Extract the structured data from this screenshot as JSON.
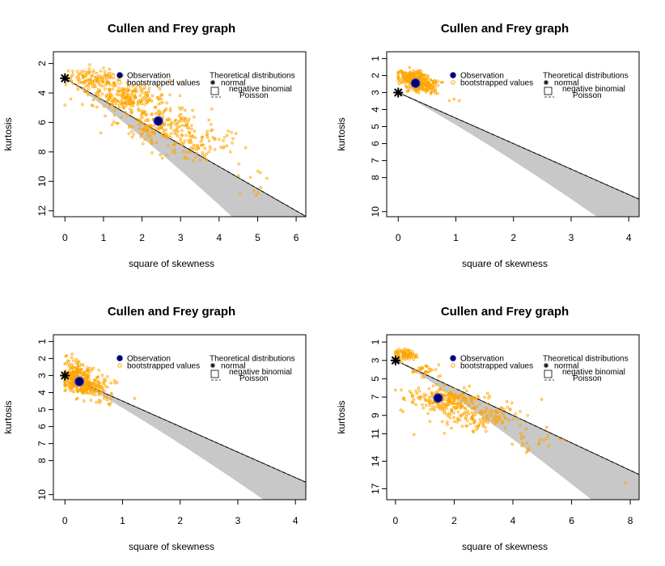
{
  "chart_data": [
    {
      "type": "scatter",
      "title": "Cullen and Frey graph",
      "xlabel": "square of skewness",
      "ylabel": "kurtosis",
      "xlim": [
        -0.3,
        6.25
      ],
      "ylim": [
        12.4,
        1.2
      ],
      "xticks": [
        0,
        1,
        2,
        3,
        4,
        5,
        6
      ],
      "yticks": [
        2,
        4,
        6,
        8,
        10,
        12
      ],
      "observation": {
        "x": 2.42,
        "y": 5.9
      },
      "normal": {
        "x": 0,
        "y": 3
      },
      "bootstrap_cloud": [
        {
          "x": 0.75,
          "y": 3.0,
          "sx": 0.35,
          "sy": 0.35,
          "n": 120
        },
        {
          "x": 1.6,
          "y": 4.3,
          "sx": 0.5,
          "sy": 0.45,
          "n": 220
        },
        {
          "x": 2.5,
          "y": 6.1,
          "sx": 0.55,
          "sy": 0.6,
          "n": 200
        },
        {
          "x": 3.4,
          "y": 7.4,
          "sx": 0.55,
          "sy": 0.7,
          "n": 90
        },
        {
          "x": 5.1,
          "y": 10.2,
          "sx": 0.35,
          "sy": 0.6,
          "n": 10
        }
      ],
      "legend": {
        "observation": "Observation",
        "bootstrapped": "bootstrapped values",
        "theoretical_header": "Theoretical distributions",
        "normal": "normal",
        "negative_binomial": "negative binomial",
        "poisson": "Poisson"
      }
    },
    {
      "type": "scatter",
      "title": "Cullen and Frey graph",
      "xlabel": "square of skewness",
      "ylabel": "kurtosis",
      "xlim": [
        -0.2,
        4.18
      ],
      "ylim": [
        10.3,
        0.6
      ],
      "xticks": [
        0,
        1,
        2,
        3,
        4
      ],
      "yticks": [
        1,
        2,
        3,
        4,
        5,
        6,
        7,
        8,
        10
      ],
      "observation": {
        "x": 0.3,
        "y": 2.45
      },
      "normal": {
        "x": 0,
        "y": 3
      },
      "bootstrap_cloud": [
        {
          "x": 0.22,
          "y": 2.1,
          "sx": 0.12,
          "sy": 0.2,
          "n": 180
        },
        {
          "x": 0.45,
          "y": 2.6,
          "sx": 0.14,
          "sy": 0.22,
          "n": 140
        },
        {
          "x": 0.95,
          "y": 3.3,
          "sx": 0.12,
          "sy": 0.2,
          "n": 3
        }
      ],
      "legend": {
        "observation": "Observation",
        "bootstrapped": "bootstrapped values",
        "theoretical_header": "Theoretical distributions",
        "normal": "normal",
        "negative_binomial": "negative binomial",
        "poisson": "Poisson"
      }
    },
    {
      "type": "scatter",
      "title": "Cullen and Frey graph",
      "xlabel": "square of skewness",
      "ylabel": "kurtosis",
      "xlim": [
        -0.2,
        4.18
      ],
      "ylim": [
        10.3,
        0.6
      ],
      "xticks": [
        0,
        1,
        2,
        3,
        4
      ],
      "yticks": [
        1,
        2,
        3,
        4,
        5,
        6,
        7,
        8,
        10
      ],
      "observation": {
        "x": 0.25,
        "y": 3.35
      },
      "normal": {
        "x": 0,
        "y": 3
      },
      "bootstrap_cloud": [
        {
          "x": 0.18,
          "y": 3.0,
          "sx": 0.12,
          "sy": 0.4,
          "n": 200
        },
        {
          "x": 0.4,
          "y": 3.55,
          "sx": 0.17,
          "sy": 0.35,
          "n": 180
        },
        {
          "x": 0.8,
          "y": 4.4,
          "sx": 0.18,
          "sy": 0.3,
          "n": 12
        }
      ],
      "legend": {
        "observation": "Observation",
        "bootstrapped": "bootstrapped values",
        "theoretical_header": "Theoretical distributions",
        "normal": "normal",
        "negative_binomial": "negative binomial",
        "poisson": "Poisson"
      }
    },
    {
      "type": "scatter",
      "title": "Cullen and Frey graph",
      "xlabel": "square of skewness",
      "ylabel": "kurtosis",
      "xlim": [
        -0.3,
        8.3
      ],
      "ylim": [
        18.2,
        0.2
      ],
      "xticks": [
        0,
        2,
        4,
        6,
        8
      ],
      "yticks": [
        1,
        3,
        5,
        7,
        9,
        11,
        14,
        17
      ],
      "observation": {
        "x": 1.45,
        "y": 7.1
      },
      "normal": {
        "x": 0,
        "y": 3
      },
      "bootstrap_cloud": [
        {
          "x": 0.3,
          "y": 2.4,
          "sx": 0.2,
          "sy": 0.3,
          "n": 80
        },
        {
          "x": 1.0,
          "y": 4.2,
          "sx": 0.25,
          "sy": 0.4,
          "n": 30
        },
        {
          "x": 1.6,
          "y": 7.3,
          "sx": 0.55,
          "sy": 0.7,
          "n": 220
        },
        {
          "x": 3.0,
          "y": 9.2,
          "sx": 0.7,
          "sy": 0.9,
          "n": 140
        },
        {
          "x": 4.8,
          "y": 11.8,
          "sx": 0.55,
          "sy": 0.8,
          "n": 25
        },
        {
          "x": 7.9,
          "y": 16.4,
          "sx": 0.05,
          "sy": 0.1,
          "n": 1
        }
      ],
      "legend": {
        "observation": "Observation",
        "bootstrapped": "bootstrapped values",
        "theoretical_header": "Theoretical distributions",
        "normal": "normal",
        "negative_binomial": "negative binomial",
        "poisson": "Poisson"
      }
    }
  ],
  "colors": {
    "observation": "#00007a",
    "bootstrapped": "#ffa500",
    "gamma_band": "#c8c8c8",
    "line": "#000000"
  }
}
